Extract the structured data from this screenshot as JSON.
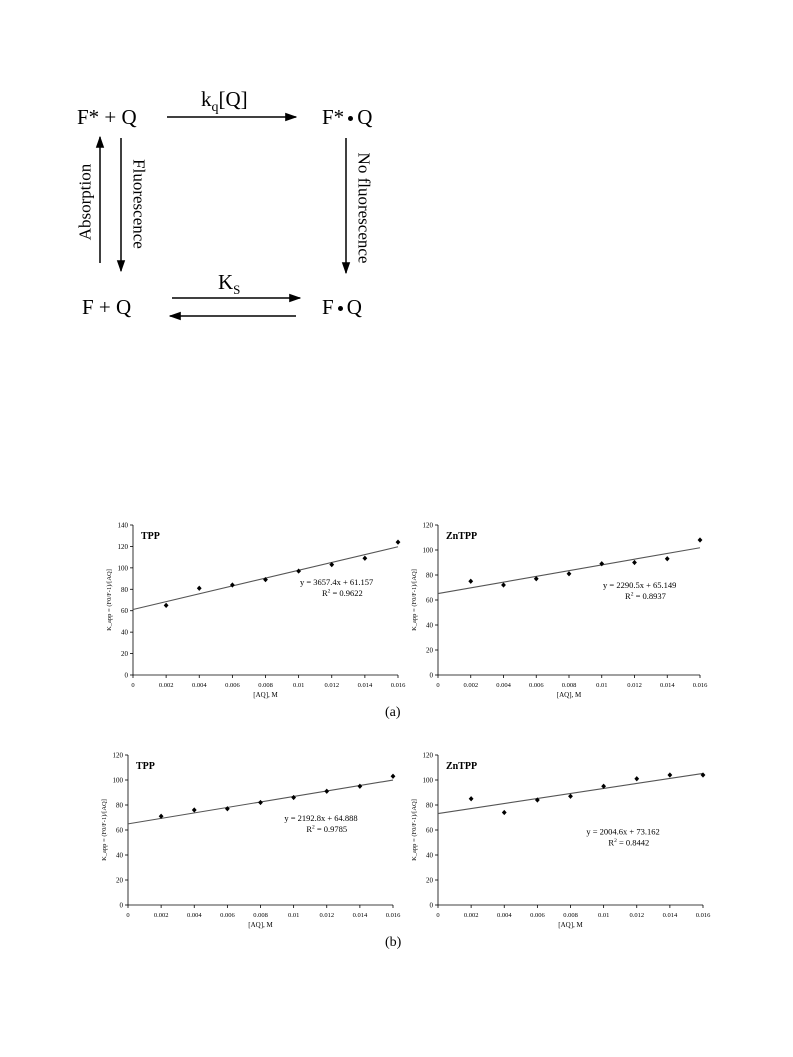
{
  "scheme": {
    "top_left": "F* + Q",
    "top_right": "F*",
    "top_right_q": "Q",
    "bottom_left": "F + Q",
    "bottom_right": "F",
    "bottom_right_q": "Q",
    "top_arrow_k": "k",
    "top_arrow_sub": "q",
    "top_arrow_bracket": "[Q]",
    "bottom_arrow_k": "K",
    "bottom_arrow_sub": "S",
    "left_up_label": "Absorption",
    "left_down_label": "Fluorescence",
    "right_down_label": "No fluorescence"
  },
  "panels": {
    "a": "(a)",
    "b": "(b)"
  },
  "chart_data": [
    {
      "type": "scatter",
      "title": "TPP",
      "xlabel": "[AQ], M",
      "ylabel": "K_app = (F0/F-1)/[AQ]",
      "xlim": [
        0,
        0.016
      ],
      "ylim": [
        0,
        140
      ],
      "xticks": [
        "0",
        "0.002",
        "0.004",
        "0.006",
        "0.008",
        "0.01",
        "0.012",
        "0.014",
        "0.016"
      ],
      "yticks": [
        "0",
        "20",
        "40",
        "60",
        "80",
        "100",
        "120",
        "140"
      ],
      "x": [
        0.002,
        0.004,
        0.006,
        0.008,
        0.01,
        0.012,
        0.014,
        0.016
      ],
      "y": [
        65,
        81,
        84,
        89,
        97,
        103,
        109,
        124
      ],
      "fit": {
        "slope": 3657.4,
        "intercept": 61.157
      },
      "equation": "y = 3657.4x + 61.157",
      "r2_label": "R",
      "r2_value": " = 0.9622",
      "grid": false
    },
    {
      "type": "scatter",
      "title": "ZnTPP",
      "xlabel": "[AQ], M",
      "ylabel": "K_app = (F0/F-1)/[AQ]",
      "xlim": [
        0,
        0.016
      ],
      "ylim": [
        0,
        120
      ],
      "xticks": [
        "0",
        "0.002",
        "0.004",
        "0.006",
        "0.008",
        "0.01",
        "0.012",
        "0.014",
        "0.016"
      ],
      "yticks": [
        "0",
        "20",
        "40",
        "60",
        "80",
        "100",
        "120"
      ],
      "x": [
        0.002,
        0.004,
        0.006,
        0.008,
        0.01,
        0.012,
        0.014,
        0.016
      ],
      "y": [
        75,
        72,
        77,
        81,
        89,
        90,
        93,
        108
      ],
      "fit": {
        "slope": 2290.5,
        "intercept": 65.149
      },
      "equation": "y = 2290.5x + 65.149",
      "r2_label": "R",
      "r2_value": " = 0.8937",
      "grid": false
    },
    {
      "type": "scatter",
      "title": "TPP",
      "xlabel": "[AQ], M",
      "ylabel": "K_app = (F0/F-1)/[AQ]",
      "xlim": [
        0,
        0.016
      ],
      "ylim": [
        0,
        120
      ],
      "xticks": [
        "0",
        "0.002",
        "0.004",
        "0.006",
        "0.008",
        "0.01",
        "0.012",
        "0.014",
        "0.016"
      ],
      "yticks": [
        "0",
        "20",
        "40",
        "60",
        "80",
        "100",
        "120"
      ],
      "x": [
        0.002,
        0.004,
        0.006,
        0.008,
        0.01,
        0.012,
        0.014,
        0.016
      ],
      "y": [
        71,
        76,
        77,
        82,
        86,
        91,
        95,
        103
      ],
      "fit": {
        "slope": 2192.8,
        "intercept": 64.888
      },
      "equation": "y = 2192.8x + 64.888",
      "r2_label": "R",
      "r2_value": " = 0.9785",
      "grid": false
    },
    {
      "type": "scatter",
      "title": "ZnTPP",
      "xlabel": "[AQ], M",
      "ylabel": "K_app = (F0/F-1)/[AQ]",
      "xlim": [
        0,
        0.016
      ],
      "ylim": [
        0,
        120
      ],
      "xticks": [
        "0",
        "0.002",
        "0.004",
        "0.006",
        "0.008",
        "0.01",
        "0.012",
        "0.014",
        "0.016"
      ],
      "yticks": [
        "0",
        "20",
        "40",
        "60",
        "80",
        "100",
        "120"
      ],
      "x": [
        0.002,
        0.004,
        0.006,
        0.008,
        0.01,
        0.012,
        0.014,
        0.016
      ],
      "y": [
        85,
        74,
        84,
        87,
        95,
        101,
        104,
        104
      ],
      "fit": {
        "slope": 2004.6,
        "intercept": 73.162
      },
      "equation": "y = 2004.6x + 73.162",
      "r2_label": "R",
      "r2_value": " = 0.8442",
      "grid": false
    }
  ]
}
